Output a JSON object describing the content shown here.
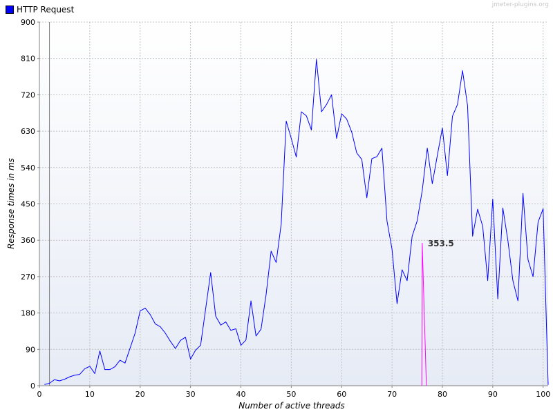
{
  "watermark": "jmeter-plugins.org",
  "colors": {
    "series": "#0000ff",
    "marker": "#ff00ff",
    "grid": "#c0c0c0",
    "plot_bg_top": "#ffffff",
    "plot_bg_bottom": "#e6ebf5"
  },
  "chart_data": {
    "type": "line",
    "xlabel": "Number of active threads",
    "ylabel": "Response times in ms",
    "xlim": [
      0,
      101
    ],
    "ylim": [
      0,
      900
    ],
    "xticks": [
      0,
      10,
      20,
      30,
      40,
      50,
      60,
      70,
      80,
      90,
      100
    ],
    "yticks": [
      0,
      90,
      180,
      270,
      360,
      450,
      540,
      630,
      720,
      810,
      900
    ],
    "grid": true,
    "legend": "top-left",
    "legend_entries": [
      "HTTP Request"
    ],
    "series": [
      {
        "name": "HTTP Request",
        "color": "#0000ff",
        "points": [
          [
            1,
            3
          ],
          [
            2,
            6
          ],
          [
            3,
            15
          ],
          [
            4,
            12
          ],
          [
            5,
            16
          ],
          [
            6,
            22
          ],
          [
            7,
            26
          ],
          [
            8,
            28
          ],
          [
            9,
            42
          ],
          [
            10,
            48
          ],
          [
            11,
            30
          ],
          [
            12,
            86
          ],
          [
            13,
            40
          ],
          [
            14,
            40
          ],
          [
            15,
            47
          ],
          [
            16,
            63
          ],
          [
            17,
            56
          ],
          [
            18,
            93
          ],
          [
            19,
            130
          ],
          [
            20,
            185
          ],
          [
            21,
            192
          ],
          [
            22,
            176
          ],
          [
            23,
            153
          ],
          [
            24,
            146
          ],
          [
            25,
            130
          ],
          [
            26,
            110
          ],
          [
            27,
            92
          ],
          [
            28,
            112
          ],
          [
            29,
            120
          ],
          [
            30,
            66
          ],
          [
            31,
            88
          ],
          [
            32,
            100
          ],
          [
            33,
            190
          ],
          [
            34,
            280
          ],
          [
            35,
            172
          ],
          [
            36,
            150
          ],
          [
            37,
            158
          ],
          [
            38,
            137
          ],
          [
            39,
            141
          ],
          [
            40,
            100
          ],
          [
            41,
            113
          ],
          [
            42,
            210
          ],
          [
            43,
            123
          ],
          [
            44,
            140
          ],
          [
            45,
            225
          ],
          [
            46,
            333
          ],
          [
            47,
            305
          ],
          [
            48,
            400
          ],
          [
            49,
            655
          ],
          [
            50,
            612
          ],
          [
            51,
            566
          ],
          [
            52,
            678
          ],
          [
            53,
            668
          ],
          [
            54,
            633
          ],
          [
            55,
            808
          ],
          [
            56,
            678
          ],
          [
            57,
            696
          ],
          [
            58,
            720
          ],
          [
            59,
            612
          ],
          [
            60,
            673
          ],
          [
            61,
            660
          ],
          [
            62,
            628
          ],
          [
            63,
            576
          ],
          [
            64,
            560
          ],
          [
            65,
            465
          ],
          [
            66,
            562
          ],
          [
            67,
            567
          ],
          [
            68,
            588
          ],
          [
            69,
            408
          ],
          [
            70,
            338
          ],
          [
            71,
            203
          ],
          [
            72,
            287
          ],
          [
            73,
            260
          ],
          [
            74,
            370
          ],
          [
            75,
            408
          ],
          [
            76,
            483
          ],
          [
            77,
            588
          ],
          [
            78,
            500
          ],
          [
            79,
            570
          ],
          [
            80,
            638
          ],
          [
            81,
            520
          ],
          [
            82,
            667
          ],
          [
            83,
            696
          ],
          [
            84,
            780
          ],
          [
            85,
            693
          ],
          [
            86,
            370
          ],
          [
            87,
            437
          ],
          [
            88,
            395
          ],
          [
            89,
            260
          ],
          [
            90,
            462
          ],
          [
            91,
            215
          ],
          [
            92,
            440
          ],
          [
            93,
            360
          ],
          [
            94,
            260
          ],
          [
            95,
            210
          ],
          [
            96,
            476
          ],
          [
            97,
            312
          ],
          [
            98,
            270
          ],
          [
            99,
            405
          ],
          [
            100,
            438
          ],
          [
            101,
            2
          ]
        ]
      }
    ],
    "annotations": [
      {
        "text": "353.5",
        "x": 76,
        "y": 353.5,
        "color": "#ff00ff"
      }
    ],
    "reference_line_x": 2
  }
}
